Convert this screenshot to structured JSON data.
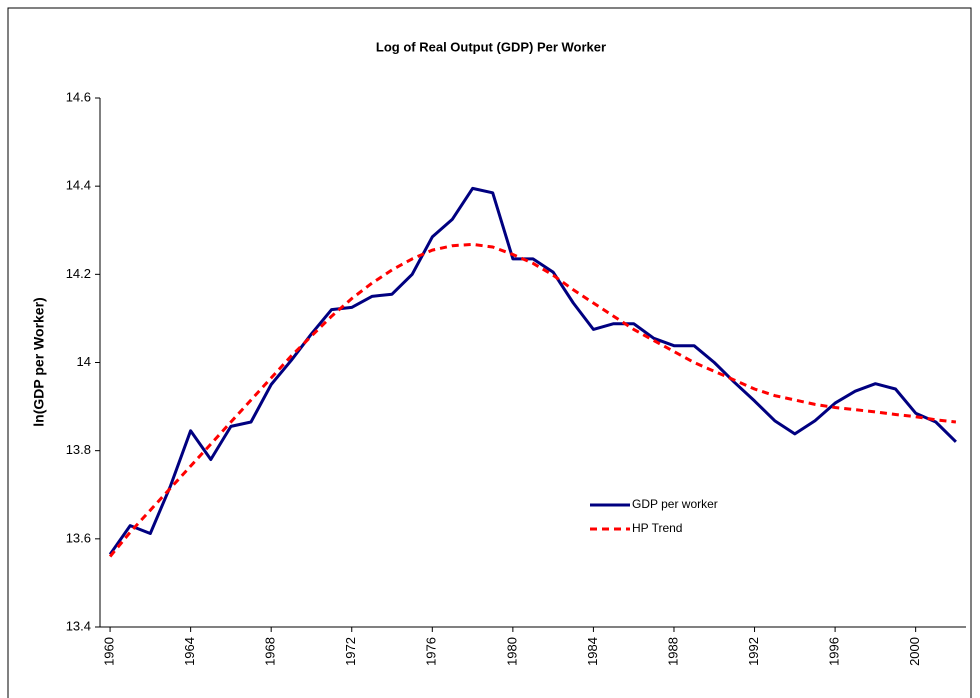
{
  "chart_data": {
    "type": "line",
    "title": "Log of Real Output (GDP) Per Worker",
    "y_label": "ln(GDP per Worker)",
    "x": [
      1960,
      1961,
      1962,
      1963,
      1964,
      1965,
      1966,
      1967,
      1968,
      1969,
      1970,
      1971,
      1972,
      1973,
      1974,
      1975,
      1976,
      1977,
      1978,
      1979,
      1980,
      1981,
      1982,
      1983,
      1984,
      1985,
      1986,
      1987,
      1988,
      1989,
      1990,
      1991,
      1992,
      1993,
      1994,
      1995,
      1996,
      1997,
      1998,
      1999,
      2000,
      2001,
      2002
    ],
    "series": [
      {
        "name": "GDP per worker",
        "color": "#000080",
        "dashed": false,
        "values": [
          13.565,
          13.63,
          13.612,
          13.72,
          13.845,
          13.78,
          13.855,
          13.865,
          13.95,
          14.005,
          14.065,
          14.12,
          14.125,
          14.15,
          14.155,
          14.2,
          14.285,
          14.325,
          14.395,
          14.385,
          14.235,
          14.235,
          14.205,
          14.135,
          14.075,
          14.088,
          14.088,
          14.055,
          14.038,
          14.038,
          14.0,
          13.955,
          13.913,
          13.868,
          13.838,
          13.868,
          13.908,
          13.935,
          13.952,
          13.94,
          13.885,
          13.865,
          13.82
        ]
      },
      {
        "name": "HP Trend",
        "color": "#ff0000",
        "dashed": true,
        "values": [
          13.56,
          13.615,
          13.665,
          13.715,
          13.765,
          13.815,
          13.865,
          13.915,
          13.965,
          14.015,
          14.06,
          14.105,
          14.145,
          14.18,
          14.21,
          14.235,
          14.255,
          14.265,
          14.268,
          14.262,
          14.245,
          14.225,
          14.198,
          14.165,
          14.135,
          14.105,
          14.075,
          14.05,
          14.025,
          14.0,
          13.98,
          13.96,
          13.94,
          13.925,
          13.915,
          13.905,
          13.898,
          13.893,
          13.888,
          13.882,
          13.877,
          13.87,
          13.865
        ]
      }
    ],
    "xlim": [
      1959.5,
      2002.5
    ],
    "xticks": [
      1960,
      1964,
      1968,
      1972,
      1976,
      1980,
      1984,
      1988,
      1992,
      1996,
      2000
    ],
    "ylim": [
      13.4,
      14.6
    ],
    "yticks": [
      13.4,
      13.6,
      13.8,
      14,
      14.2,
      14.4,
      14.6
    ],
    "grid": false,
    "legend_position": "center-right"
  }
}
